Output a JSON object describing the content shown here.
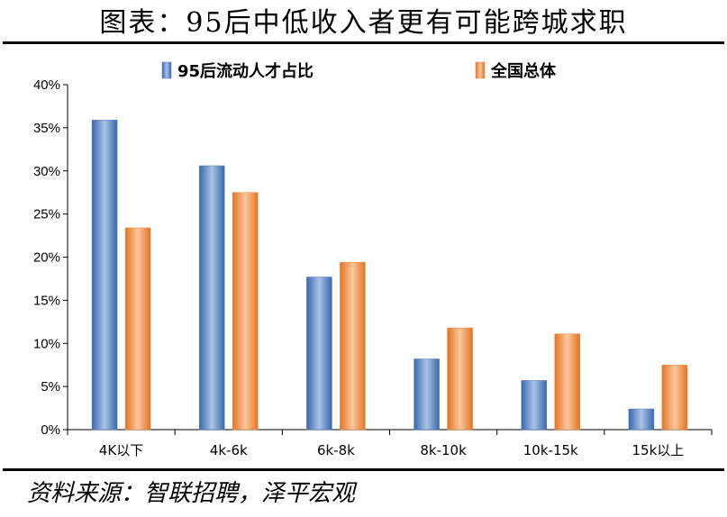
{
  "title": "图表：95后中低收入者更有可能跨城求职",
  "source": "资料来源：智联招聘，泽平宏观",
  "colors": {
    "series_blue": "#4f7fc0",
    "series_orange": "#ef8a3a"
  },
  "chart_data": {
    "type": "bar",
    "categories": [
      "4K以下",
      "4k-6k",
      "6k-8k",
      "8k-10k",
      "10k-15k",
      "15k以上"
    ],
    "series": [
      {
        "name": "95后流动人才占比",
        "values": [
          35.9,
          30.6,
          17.7,
          8.2,
          5.7,
          2.4
        ]
      },
      {
        "name": "全国总体",
        "values": [
          23.4,
          27.5,
          19.4,
          11.8,
          11.1,
          7.5
        ]
      }
    ],
    "ylim": [
      0,
      40
    ],
    "yticks": [
      "0%",
      "5%",
      "10%",
      "15%",
      "20%",
      "25%",
      "30%",
      "35%",
      "40%"
    ],
    "ytick_values": [
      0,
      5,
      10,
      15,
      20,
      25,
      30,
      35,
      40
    ],
    "grid": false,
    "legend_position": "top"
  }
}
